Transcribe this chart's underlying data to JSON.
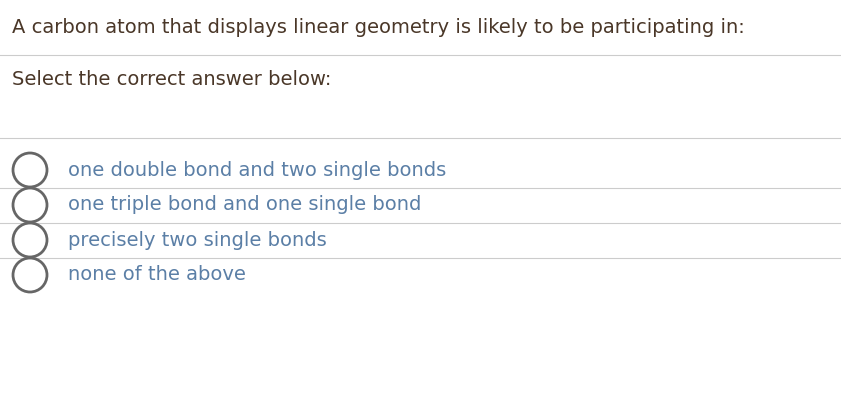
{
  "question": "A carbon atom that displays linear geometry is likely to be participating in:",
  "instruction": "Select the correct answer below:",
  "options": [
    "one double bond and two single bonds",
    "one triple bond and one single bond",
    "precisely two single bonds",
    "none of the above"
  ],
  "background_color": "#ffffff",
  "question_color": "#4a3728",
  "option_color": "#5b7fa6",
  "instruction_color": "#4a3728",
  "line_color": "#cccccc",
  "circle_color": "#666666",
  "question_fontsize": 14,
  "option_fontsize": 14,
  "instruction_fontsize": 14,
  "fig_width": 8.41,
  "fig_height": 4.0,
  "dpi": 100
}
